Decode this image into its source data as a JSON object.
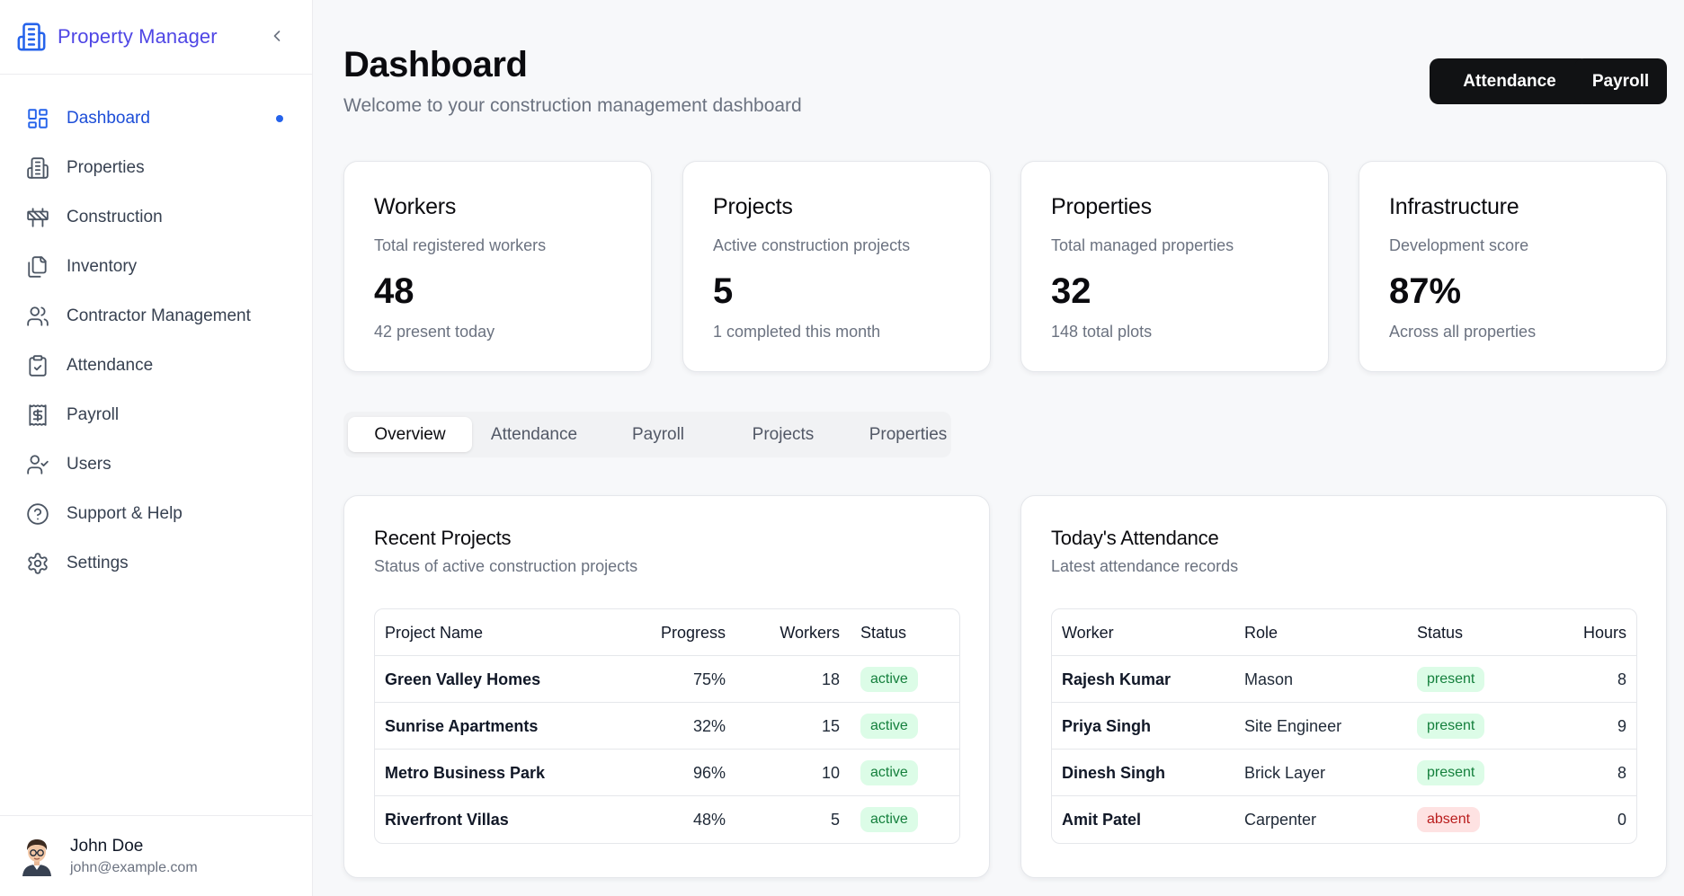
{
  "brand": {
    "title": "Property Manager"
  },
  "nav": {
    "items": [
      {
        "label": "Dashboard",
        "icon": "layout-grid-icon",
        "active": true
      },
      {
        "label": "Properties",
        "icon": "building-icon"
      },
      {
        "label": "Construction",
        "icon": "construction-barrier-icon"
      },
      {
        "label": "Inventory",
        "icon": "files-icon"
      },
      {
        "label": "Contractor Management",
        "icon": "users-icon"
      },
      {
        "label": "Attendance",
        "icon": "clipboard-check-icon"
      },
      {
        "label": "Payroll",
        "icon": "receipt-dollar-icon"
      },
      {
        "label": "Users",
        "icon": "user-check-icon"
      },
      {
        "label": "Support & Help",
        "icon": "help-circle-icon"
      },
      {
        "label": "Settings",
        "icon": "gear-icon"
      }
    ]
  },
  "user": {
    "name": "John Doe",
    "email": "john@example.com"
  },
  "header": {
    "title": "Dashboard",
    "subtitle": "Welcome to your construction management dashboard",
    "buttons": {
      "attendance": "Attendance",
      "payroll": "Payroll"
    }
  },
  "stats": [
    {
      "title": "Workers",
      "subtitle": "Total registered workers",
      "value": "48",
      "note": "42 present today"
    },
    {
      "title": "Projects",
      "subtitle": "Active construction projects",
      "value": "5",
      "note": "1 completed this month"
    },
    {
      "title": "Properties",
      "subtitle": "Total managed properties",
      "value": "32",
      "note": "148 total plots"
    },
    {
      "title": "Infrastructure",
      "subtitle": "Development score",
      "value": "87%",
      "note": "Across all properties"
    }
  ],
  "tabs": [
    "Overview",
    "Attendance",
    "Payroll",
    "Projects",
    "Properties"
  ],
  "recent_projects": {
    "title": "Recent Projects",
    "subtitle": "Status of active construction projects",
    "headers": [
      "Project Name",
      "Progress",
      "Workers",
      "Status"
    ],
    "rows": [
      {
        "name": "Green Valley Homes",
        "progress": "75%",
        "workers": "18",
        "status": "active"
      },
      {
        "name": "Sunrise Apartments",
        "progress": "32%",
        "workers": "15",
        "status": "active"
      },
      {
        "name": "Metro Business Park",
        "progress": "96%",
        "workers": "10",
        "status": "active"
      },
      {
        "name": "Riverfront Villas",
        "progress": "48%",
        "workers": "5",
        "status": "active"
      }
    ]
  },
  "todays_attendance": {
    "title": "Today's Attendance",
    "subtitle": "Latest attendance records",
    "headers": [
      "Worker",
      "Role",
      "Status",
      "Hours"
    ],
    "rows": [
      {
        "worker": "Rajesh Kumar",
        "role": "Mason",
        "status": "present",
        "hours": "8"
      },
      {
        "worker": "Priya Singh",
        "role": "Site Engineer",
        "status": "present",
        "hours": "9"
      },
      {
        "worker": "Dinesh Singh",
        "role": "Brick Layer",
        "status": "present",
        "hours": "8"
      },
      {
        "worker": "Amit Patel",
        "role": "Carpenter",
        "status": "absent",
        "hours": "0"
      }
    ]
  },
  "colors": {
    "accent": "#4f46e5",
    "active_nav": "#1d4ed8",
    "button_dark": "#111214",
    "badge_green": "#dcfce7",
    "badge_red": "#fee2e2"
  }
}
